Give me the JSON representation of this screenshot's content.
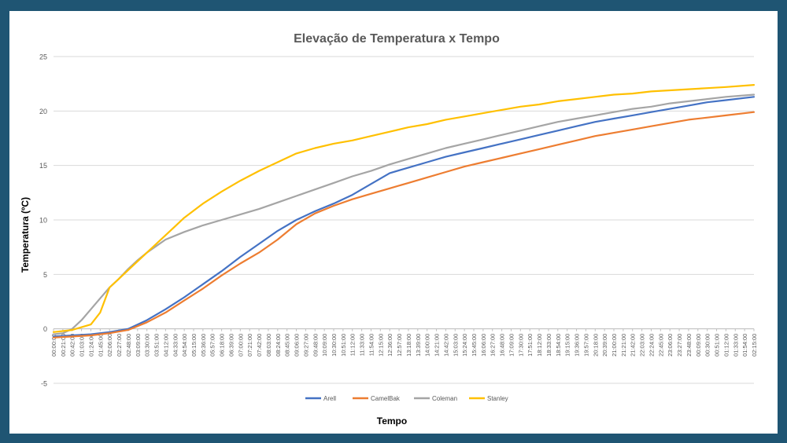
{
  "chart_data": {
    "type": "line",
    "title": "Elevação de Temperatura x Tempo",
    "xlabel": "Tempo",
    "ylabel": "Temperatura (ºC)",
    "ylim": [
      -5,
      25
    ],
    "yticks": [
      -5,
      0,
      5,
      10,
      15,
      20,
      25
    ],
    "grid": true,
    "legend": "bottom",
    "x_tick_labels": [
      "00:00:00",
      "00:21:00",
      "00:42:00",
      "01:03:00",
      "01:24:00",
      "01:45:00",
      "02:06:00",
      "02:27:00",
      "02:48:00",
      "03:09:00",
      "03:30:00",
      "03:51:00",
      "04:12:00",
      "04:33:00",
      "04:54:00",
      "05:15:00",
      "05:36:00",
      "05:57:00",
      "06:18:00",
      "06:39:00",
      "07:00:00",
      "07:21:00",
      "07:42:00",
      "08:03:00",
      "08:24:00",
      "08:45:00",
      "09:06:00",
      "09:27:00",
      "09:48:00",
      "10:09:00",
      "10:30:00",
      "10:51:00",
      "11:12:00",
      "11:33:00",
      "11:54:00",
      "12:15:00",
      "12:36:00",
      "12:57:00",
      "13:18:00",
      "13:39:00",
      "14:00:00",
      "14:21:00",
      "14:42:00",
      "15:03:00",
      "15:24:00",
      "15:45:00",
      "16:06:00",
      "16:27:00",
      "16:48:00",
      "17:09:00",
      "17:30:00",
      "17:51:00",
      "18:12:00",
      "18:33:00",
      "18:54:00",
      "19:15:00",
      "19:36:00",
      "19:57:00",
      "20:18:00",
      "20:39:00",
      "21:00:00",
      "21:21:00",
      "21:42:00",
      "22:03:00",
      "22:24:00",
      "22:45:00",
      "23:06:00",
      "23:27:00",
      "23:48:00",
      "00:09:00",
      "00:30:00",
      "00:51:00",
      "01:12:00",
      "01:33:00",
      "01:54:00",
      "02:15:00"
    ],
    "x_index_max": 75,
    "series": [
      {
        "name": "Arell",
        "color": "#4472c4",
        "x": [
          0,
          2,
          4,
          6,
          8,
          10,
          12,
          14,
          16,
          18,
          20,
          22,
          24,
          26,
          28,
          30,
          32,
          34,
          36,
          38,
          40,
          42,
          44,
          46,
          48,
          50,
          52,
          54,
          56,
          58,
          60,
          62,
          64,
          66,
          68,
          70,
          72,
          75
        ],
        "values": [
          -0.7,
          -0.6,
          -0.5,
          -0.3,
          0.0,
          0.8,
          1.8,
          2.9,
          4.1,
          5.3,
          6.6,
          7.8,
          9.0,
          10.0,
          10.8,
          11.5,
          12.3,
          13.3,
          14.3,
          14.8,
          15.3,
          15.8,
          16.2,
          16.6,
          17.0,
          17.4,
          17.8,
          18.2,
          18.6,
          19.0,
          19.3,
          19.6,
          19.9,
          20.2,
          20.5,
          20.8,
          21.0,
          21.3
        ]
      },
      {
        "name": "CamelBak",
        "color": "#ed7d31",
        "x": [
          0,
          2,
          4,
          6,
          8,
          10,
          12,
          14,
          16,
          18,
          20,
          22,
          24,
          26,
          28,
          30,
          32,
          34,
          36,
          38,
          40,
          42,
          44,
          46,
          48,
          50,
          52,
          54,
          56,
          58,
          60,
          62,
          64,
          66,
          68,
          70,
          72,
          75
        ],
        "values": [
          -0.8,
          -0.7,
          -0.6,
          -0.4,
          -0.1,
          0.6,
          1.5,
          2.6,
          3.7,
          4.9,
          6.0,
          7.0,
          8.2,
          9.6,
          10.6,
          11.3,
          11.9,
          12.4,
          12.9,
          13.4,
          13.9,
          14.4,
          14.9,
          15.3,
          15.7,
          16.1,
          16.5,
          16.9,
          17.3,
          17.7,
          18.0,
          18.3,
          18.6,
          18.9,
          19.2,
          19.4,
          19.6,
          19.9
        ]
      },
      {
        "name": "Coleman",
        "color": "#a5a5a5",
        "x": [
          0,
          1,
          2,
          3,
          4,
          5,
          6,
          7,
          8,
          9,
          10,
          11,
          12,
          14,
          16,
          18,
          20,
          22,
          24,
          26,
          28,
          30,
          32,
          34,
          36,
          38,
          40,
          42,
          44,
          46,
          48,
          50,
          52,
          54,
          56,
          58,
          60,
          62,
          64,
          66,
          68,
          70,
          72,
          75
        ],
        "values": [
          -0.5,
          -0.4,
          0.0,
          0.8,
          1.8,
          2.8,
          3.8,
          4.6,
          5.5,
          6.3,
          7.0,
          7.6,
          8.2,
          8.9,
          9.5,
          10.0,
          10.5,
          11.0,
          11.6,
          12.2,
          12.8,
          13.4,
          14.0,
          14.5,
          15.1,
          15.6,
          16.1,
          16.6,
          17.0,
          17.4,
          17.8,
          18.2,
          18.6,
          19.0,
          19.3,
          19.6,
          19.9,
          20.2,
          20.4,
          20.7,
          20.9,
          21.1,
          21.3,
          21.5
        ]
      },
      {
        "name": "Stanley",
        "color": "#ffc000",
        "x": [
          0,
          2,
          4,
          5,
          6,
          7,
          8,
          9,
          10,
          11,
          12,
          13,
          14,
          16,
          18,
          20,
          22,
          24,
          26,
          28,
          30,
          32,
          34,
          36,
          38,
          40,
          42,
          44,
          46,
          48,
          50,
          52,
          54,
          56,
          58,
          60,
          62,
          64,
          66,
          68,
          70,
          72,
          75
        ],
        "values": [
          -0.3,
          -0.1,
          0.4,
          1.5,
          3.8,
          4.6,
          5.4,
          6.2,
          7.0,
          7.8,
          8.6,
          9.4,
          10.2,
          11.5,
          12.6,
          13.6,
          14.5,
          15.3,
          16.1,
          16.6,
          17.0,
          17.3,
          17.7,
          18.1,
          18.5,
          18.8,
          19.2,
          19.5,
          19.8,
          20.1,
          20.4,
          20.6,
          20.9,
          21.1,
          21.3,
          21.5,
          21.6,
          21.8,
          21.9,
          22.0,
          22.1,
          22.2,
          22.4
        ]
      }
    ]
  }
}
